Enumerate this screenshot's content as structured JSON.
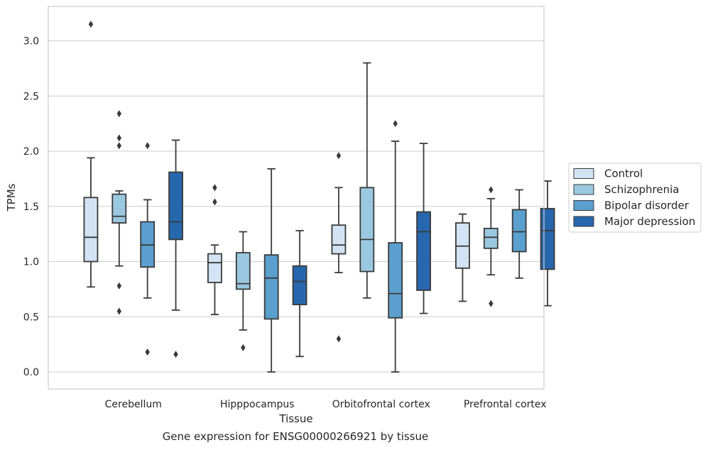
{
  "caption": "Gene expression for ENSG00000266921 by tissue",
  "chart_data": {
    "type": "box",
    "xlabel": "Tissue",
    "ylabel": "TPMs",
    "ylim": [
      -0.15,
      3.32
    ],
    "yticks": [
      0.0,
      0.5,
      1.0,
      1.5,
      2.0,
      2.5,
      3.0
    ],
    "ytick_labels": [
      "0.0",
      "0.5",
      "1.0",
      "1.5",
      "2.0",
      "2.5",
      "3.0"
    ],
    "grid": true,
    "legend_position": "right",
    "categories": [
      "Cerebellum",
      "Hipppocampus",
      "Orbitofrontal cortex",
      "Prefrontal cortex"
    ],
    "series": [
      {
        "name": "Control",
        "color": "#d2e3f3",
        "boxes": [
          {
            "whislo": 0.77,
            "q1": 1.0,
            "med": 1.22,
            "q3": 1.58,
            "whishi": 1.94,
            "fliers": [
              3.15
            ]
          },
          {
            "whislo": 0.52,
            "q1": 0.81,
            "med": 0.99,
            "q3": 1.07,
            "whishi": 1.15,
            "fliers": [
              1.54,
              1.67
            ]
          },
          {
            "whislo": 0.9,
            "q1": 1.07,
            "med": 1.15,
            "q3": 1.33,
            "whishi": 1.67,
            "fliers": [
              1.96,
              0.3
            ]
          },
          {
            "whislo": 0.64,
            "q1": 0.94,
            "med": 1.14,
            "q3": 1.35,
            "whishi": 1.43,
            "fliers": []
          }
        ]
      },
      {
        "name": "Schizophrenia",
        "color": "#9ac8e0",
        "boxes": [
          {
            "whislo": 0.96,
            "q1": 1.35,
            "med": 1.41,
            "q3": 1.61,
            "whishi": 1.64,
            "fliers": [
              2.34,
              2.12,
              2.05,
              0.78,
              0.55
            ]
          },
          {
            "whislo": 0.38,
            "q1": 0.75,
            "med": 0.8,
            "q3": 1.08,
            "whishi": 1.27,
            "fliers": [
              0.22
            ]
          },
          {
            "whislo": 0.67,
            "q1": 0.91,
            "med": 1.2,
            "q3": 1.67,
            "whishi": 2.8,
            "fliers": []
          },
          {
            "whislo": 0.88,
            "q1": 1.12,
            "med": 1.22,
            "q3": 1.3,
            "whishi": 1.57,
            "fliers": [
              1.65,
              0.62
            ]
          }
        ]
      },
      {
        "name": "Bipolar disorder",
        "color": "#5a9fcd",
        "boxes": [
          {
            "whislo": 0.67,
            "q1": 0.95,
            "med": 1.15,
            "q3": 1.36,
            "whishi": 1.56,
            "fliers": [
              2.05,
              0.18
            ]
          },
          {
            "whislo": 0.0,
            "q1": 0.48,
            "med": 0.85,
            "q3": 1.06,
            "whishi": 1.84,
            "fliers": []
          },
          {
            "whislo": 0.0,
            "q1": 0.49,
            "med": 0.71,
            "q3": 1.17,
            "whishi": 2.09,
            "fliers": [
              2.25
            ]
          },
          {
            "whislo": 0.85,
            "q1": 1.09,
            "med": 1.27,
            "q3": 1.47,
            "whishi": 1.65,
            "fliers": []
          }
        ]
      },
      {
        "name": "Major depression",
        "color": "#2767ad",
        "boxes": [
          {
            "whislo": 0.56,
            "q1": 1.2,
            "med": 1.36,
            "q3": 1.81,
            "whishi": 2.1,
            "fliers": [
              0.16
            ]
          },
          {
            "whislo": 0.14,
            "q1": 0.61,
            "med": 0.82,
            "q3": 0.96,
            "whishi": 1.28,
            "fliers": []
          },
          {
            "whislo": 0.53,
            "q1": 0.74,
            "med": 1.27,
            "q3": 1.45,
            "whishi": 2.07,
            "fliers": []
          },
          {
            "whislo": 0.6,
            "q1": 0.93,
            "med": 1.28,
            "q3": 1.48,
            "whishi": 1.73,
            "fliers": []
          }
        ]
      }
    ]
  }
}
